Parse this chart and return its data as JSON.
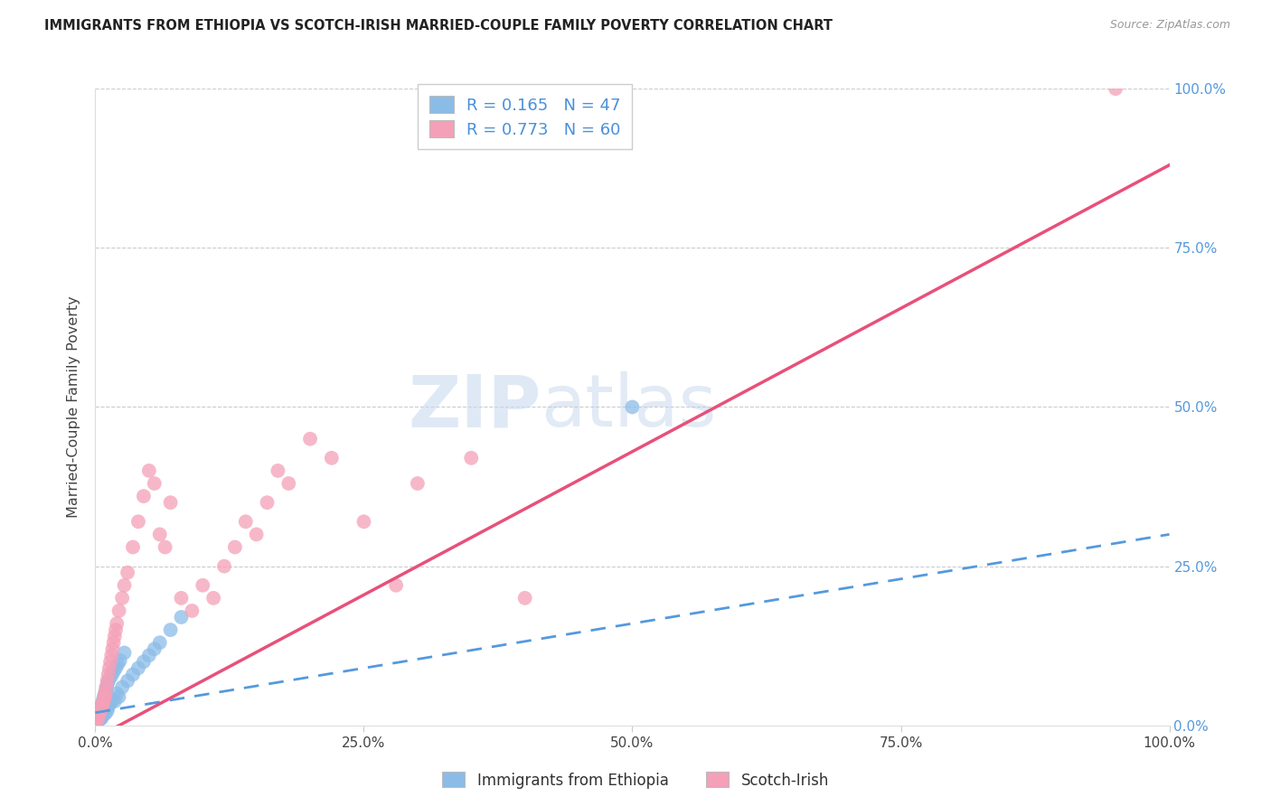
{
  "title": "IMMIGRANTS FROM ETHIOPIA VS SCOTCH-IRISH MARRIED-COUPLE FAMILY POVERTY CORRELATION CHART",
  "source": "Source: ZipAtlas.com",
  "ylabel": "Married-Couple Family Poverty",
  "legend_label1": "Immigrants from Ethiopia",
  "legend_label2": "Scotch-Irish",
  "legend_R1": "0.165",
  "legend_N1": "47",
  "legend_R2": "0.773",
  "legend_N2": "60",
  "watermark_zip": "ZIP",
  "watermark_atlas": "atlas",
  "color_blue": "#8bbce8",
  "color_blue_edge": "#7aaad8",
  "color_pink": "#f4a0b8",
  "color_pink_edge": "#e890a8",
  "color_blue_line": "#5599dd",
  "color_pink_line": "#e8507a",
  "color_grid": "#cccccc",
  "color_ytick": "#5599dd",
  "color_xtick": "#444444",
  "color_title": "#222222",
  "color_source": "#999999",
  "color_ylabel": "#444444",
  "blue_x": [
    0.1,
    0.2,
    0.3,
    0.4,
    0.5,
    0.6,
    0.7,
    0.8,
    0.9,
    1.0,
    1.1,
    1.2,
    1.4,
    1.6,
    1.8,
    2.0,
    2.2,
    2.5,
    3.0,
    3.5,
    4.0,
    4.5,
    5.0,
    5.5,
    6.0,
    7.0,
    8.0,
    0.15,
    0.25,
    0.35,
    0.45,
    0.55,
    0.65,
    0.75,
    0.85,
    0.95,
    1.05,
    1.15,
    1.3,
    1.5,
    1.7,
    1.9,
    2.1,
    2.3,
    2.7,
    0.08,
    50.0
  ],
  "blue_y": [
    0.5,
    1.0,
    0.8,
    1.5,
    1.0,
    1.2,
    2.0,
    2.5,
    1.8,
    3.0,
    2.2,
    2.8,
    3.5,
    4.0,
    3.8,
    5.0,
    4.5,
    6.0,
    7.0,
    8.0,
    9.0,
    10.0,
    11.0,
    12.0,
    13.0,
    15.0,
    17.0,
    0.6,
    1.2,
    1.8,
    2.4,
    3.0,
    3.6,
    4.2,
    4.8,
    5.4,
    6.0,
    6.6,
    7.2,
    7.8,
    8.4,
    9.0,
    9.6,
    10.2,
    11.4,
    0.3,
    50.0
  ],
  "pink_x": [
    0.1,
    0.2,
    0.3,
    0.4,
    0.5,
    0.6,
    0.7,
    0.8,
    0.9,
    1.0,
    1.2,
    1.4,
    1.6,
    1.8,
    2.0,
    2.5,
    3.0,
    3.5,
    4.0,
    4.5,
    5.0,
    5.5,
    6.0,
    6.5,
    7.0,
    8.0,
    9.0,
    10.0,
    11.0,
    12.0,
    13.0,
    14.0,
    15.0,
    16.0,
    17.0,
    18.0,
    20.0,
    22.0,
    25.0,
    28.0,
    30.0,
    35.0,
    40.0,
    0.15,
    0.25,
    0.35,
    0.45,
    0.55,
    0.65,
    0.75,
    0.85,
    0.95,
    1.1,
    1.3,
    1.5,
    1.7,
    1.9,
    2.2,
    2.7,
    95.0
  ],
  "pink_y": [
    0.5,
    1.0,
    1.5,
    2.0,
    2.5,
    3.0,
    3.5,
    4.0,
    5.0,
    6.0,
    8.0,
    10.0,
    12.0,
    14.0,
    16.0,
    20.0,
    24.0,
    28.0,
    32.0,
    36.0,
    40.0,
    38.0,
    30.0,
    28.0,
    35.0,
    20.0,
    18.0,
    22.0,
    20.0,
    25.0,
    28.0,
    32.0,
    30.0,
    35.0,
    40.0,
    38.0,
    45.0,
    42.0,
    32.0,
    22.0,
    38.0,
    42.0,
    20.0,
    0.8,
    1.2,
    1.8,
    2.2,
    2.8,
    3.2,
    3.8,
    4.2,
    4.8,
    7.0,
    9.0,
    11.0,
    13.0,
    15.0,
    18.0,
    22.0,
    100.0
  ],
  "xmin": 0,
  "xmax": 100,
  "ymin": 0,
  "ymax": 100,
  "xticks": [
    0,
    25,
    50,
    75,
    100
  ],
  "xtick_labels": [
    "0.0%",
    "25.0%",
    "50.0%",
    "75.0%",
    "100.0%"
  ],
  "yticks": [
    0,
    25,
    50,
    75,
    100
  ],
  "ytick_labels": [
    "0.0%",
    "25.0%",
    "50.0%",
    "75.0%",
    "100.0%"
  ],
  "pink_line_x0": 0,
  "pink_line_y0": -2,
  "pink_line_x1": 100,
  "pink_line_y1": 88,
  "blue_line_x0": 0,
  "blue_line_y0": 2,
  "blue_line_x1": 100,
  "blue_line_y1": 30
}
